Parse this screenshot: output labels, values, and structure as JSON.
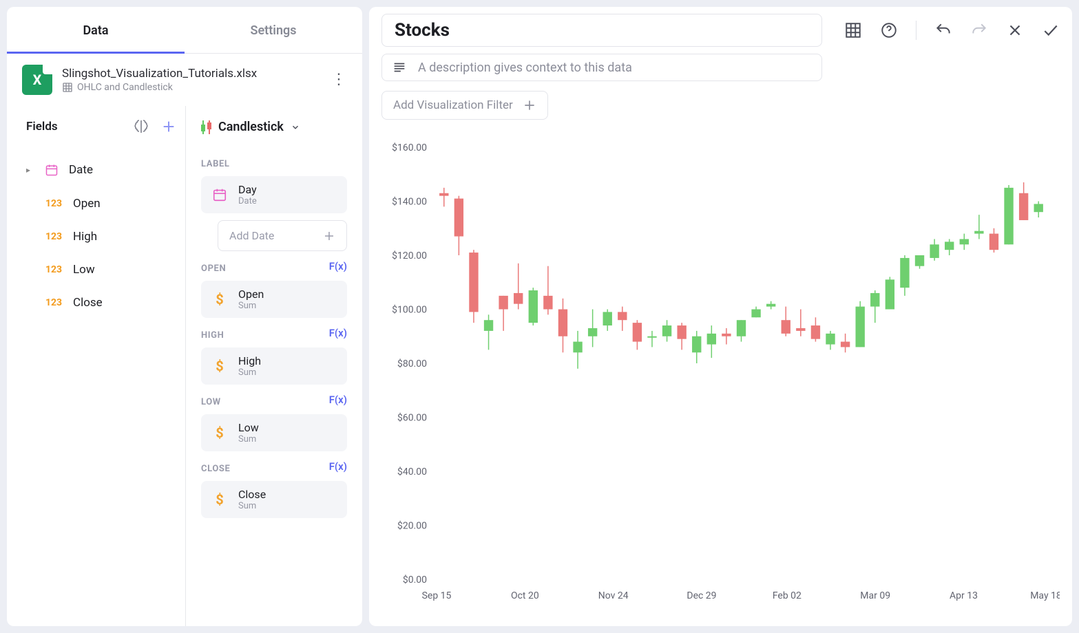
{
  "tabs": {
    "data": "Data",
    "settings": "Settings"
  },
  "file": {
    "name": "Slingshot_Visualization_Tutorials.xlsx",
    "sheet": "OHLC and Candlestick"
  },
  "fields": {
    "title": "Fields",
    "type_num": "123",
    "items": [
      {
        "name": "Date",
        "type": "date",
        "expandable": true
      },
      {
        "name": "Open",
        "type": "num"
      },
      {
        "name": "High",
        "type": "num"
      },
      {
        "name": "Low",
        "type": "num"
      },
      {
        "name": "Close",
        "type": "num"
      }
    ]
  },
  "chartType": "Candlestick",
  "config": {
    "label_section": "LABEL",
    "label_pill": {
      "title": "Day",
      "sub": "Date"
    },
    "add_date": "Add Date",
    "fx": "F(x)",
    "sum": "Sum",
    "sections": [
      {
        "head": "OPEN",
        "title": "Open"
      },
      {
        "head": "HIGH",
        "title": "High"
      },
      {
        "head": "LOW",
        "title": "Low"
      },
      {
        "head": "CLOSE",
        "title": "Close"
      }
    ]
  },
  "viz": {
    "title": "Stocks",
    "desc_placeholder": "A description gives context to this data",
    "add_filter": "Add Visualization Filter"
  },
  "chart": {
    "type": "candlestick",
    "up_color": "#6fcf6f",
    "down_color": "#ea7979",
    "text_color": "#626470",
    "background": "#ffffff",
    "y": {
      "min": 0,
      "max": 160,
      "step": 20,
      "prefix": "$",
      "decimals": 2
    },
    "x_labels": [
      {
        "t": 0.0,
        "text": "Sep 15"
      },
      {
        "t": 0.145,
        "text": "Oct 20"
      },
      {
        "t": 0.29,
        "text": "Nov 24"
      },
      {
        "t": 0.435,
        "text": "Dec 29"
      },
      {
        "t": 0.575,
        "text": "Feb 02"
      },
      {
        "t": 0.72,
        "text": "Mar 09"
      },
      {
        "t": 0.865,
        "text": "Apr 13"
      },
      {
        "t": 1.0,
        "text": "May 18"
      }
    ],
    "candles": [
      {
        "o": 143,
        "h": 145,
        "l": 138,
        "c": 142
      },
      {
        "o": 141,
        "h": 142,
        "l": 120,
        "c": 127
      },
      {
        "o": 121,
        "h": 122,
        "l": 95,
        "c": 99
      },
      {
        "o": 92,
        "h": 98,
        "l": 85,
        "c": 96
      },
      {
        "o": 105,
        "h": 105,
        "l": 92,
        "c": 100
      },
      {
        "o": 106,
        "h": 117,
        "l": 100,
        "c": 102
      },
      {
        "o": 95,
        "h": 108,
        "l": 94,
        "c": 107
      },
      {
        "o": 105,
        "h": 116,
        "l": 98,
        "c": 100
      },
      {
        "o": 100,
        "h": 104,
        "l": 84,
        "c": 90
      },
      {
        "o": 84,
        "h": 92,
        "l": 78,
        "c": 88
      },
      {
        "o": 90,
        "h": 100,
        "l": 86,
        "c": 93
      },
      {
        "o": 94,
        "h": 100,
        "l": 92,
        "c": 99
      },
      {
        "o": 99,
        "h": 101,
        "l": 92,
        "c": 96
      },
      {
        "o": 95,
        "h": 96,
        "l": 85,
        "c": 88
      },
      {
        "o": 90,
        "h": 92,
        "l": 86,
        "c": 90
      },
      {
        "o": 90,
        "h": 96,
        "l": 88,
        "c": 94
      },
      {
        "o": 94,
        "h": 95,
        "l": 85,
        "c": 89
      },
      {
        "o": 84,
        "h": 92,
        "l": 80,
        "c": 90
      },
      {
        "o": 87,
        "h": 94,
        "l": 82,
        "c": 91
      },
      {
        "o": 91,
        "h": 93,
        "l": 87,
        "c": 90
      },
      {
        "o": 90,
        "h": 96,
        "l": 88,
        "c": 96
      },
      {
        "o": 97,
        "h": 101,
        "l": 97,
        "c": 100
      },
      {
        "o": 101,
        "h": 103,
        "l": 100,
        "c": 102
      },
      {
        "o": 96,
        "h": 101,
        "l": 90,
        "c": 91
      },
      {
        "o": 93,
        "h": 100,
        "l": 90,
        "c": 92
      },
      {
        "o": 94,
        "h": 97,
        "l": 88,
        "c": 89
      },
      {
        "o": 87,
        "h": 92,
        "l": 85,
        "c": 91
      },
      {
        "o": 88,
        "h": 91,
        "l": 84,
        "c": 86
      },
      {
        "o": 86,
        "h": 103,
        "l": 86,
        "c": 101
      },
      {
        "o": 101,
        "h": 107,
        "l": 95,
        "c": 106
      },
      {
        "o": 100,
        "h": 112,
        "l": 100,
        "c": 111
      },
      {
        "o": 108,
        "h": 120,
        "l": 105,
        "c": 119
      },
      {
        "o": 116,
        "h": 120,
        "l": 115,
        "c": 120
      },
      {
        "o": 119,
        "h": 126,
        "l": 118,
        "c": 124
      },
      {
        "o": 122,
        "h": 126,
        "l": 120,
        "c": 125
      },
      {
        "o": 124,
        "h": 128,
        "l": 122,
        "c": 126
      },
      {
        "o": 128,
        "h": 135,
        "l": 126,
        "c": 129
      },
      {
        "o": 128,
        "h": 130,
        "l": 121,
        "c": 122
      },
      {
        "o": 124,
        "h": 146,
        "l": 124,
        "c": 145
      },
      {
        "o": 143,
        "h": 147,
        "l": 133,
        "c": 133
      },
      {
        "o": 136,
        "h": 140,
        "l": 134,
        "c": 139
      }
    ]
  }
}
